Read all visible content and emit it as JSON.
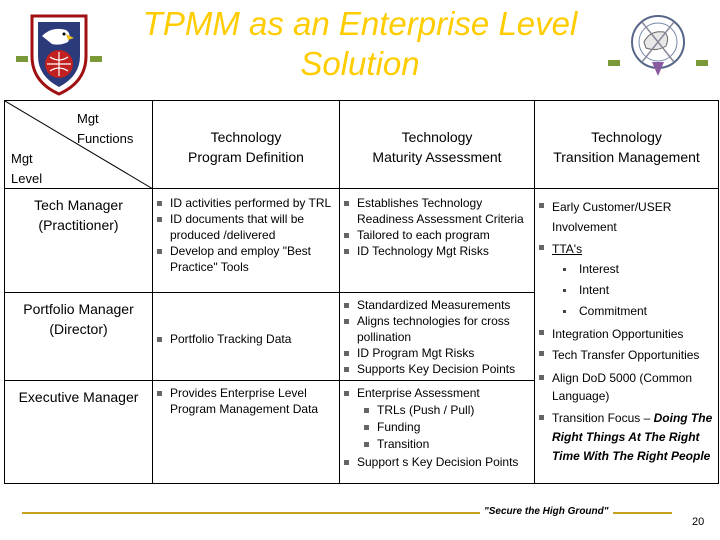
{
  "title_line1": "TPMM as an Enterprise Level",
  "title_line2": "Solution",
  "colors": {
    "title": "#ffcc00",
    "accent_green": "#7a9a3a",
    "footer_line": "#c8a020"
  },
  "table": {
    "corner": {
      "top": "Mgt",
      "top2": "Functions",
      "bottom": "Mgt",
      "bottom2": "Level"
    },
    "headers": [
      {
        "line1": "Technology",
        "line2": "Program Definition"
      },
      {
        "line1": "Technology",
        "line2": "Maturity Assessment"
      },
      {
        "line1": "Technology",
        "line2": "Transition  Management"
      }
    ],
    "rows": [
      {
        "label_line1": "Tech Manager",
        "label_line2": "(Practitioner)",
        "definition": [
          "ID activities performed by TRL",
          "ID documents that will be produced /delivered",
          "Develop and employ \"Best Practice\" Tools"
        ],
        "maturity": [
          "Establishes Technology Readiness Assessment Criteria",
          "Tailored to each program",
          "ID Technology Mgt Risks"
        ]
      },
      {
        "label_line1": "Portfolio Manager",
        "label_line2": "(Director)",
        "definition": [
          "Portfolio Tracking Data"
        ],
        "maturity": [
          "Standardized Measurements",
          "Aligns technologies for cross pollination",
          "ID Program Mgt Risks",
          "Supports Key Decision Points"
        ]
      },
      {
        "label_line1": "Executive Manager",
        "definition": [
          "Provides Enterprise Level Program Management Data"
        ],
        "maturity_top": "Enterprise  Assessment",
        "maturity_sub": [
          "TRLs (Push / Pull)",
          "Funding",
          "Transition"
        ],
        "maturity_bottom": "Support s Key Decision Points"
      }
    ],
    "transition": {
      "item1": "Early Customer/USER Involvement",
      "item2": "TTA's",
      "item2_sub": [
        "Interest",
        "Intent",
        "Commitment"
      ],
      "item3": "Integration Opportunities",
      "item4": "Tech Transfer Opportunities",
      "item5": "Align DoD 5000 (Common Language)",
      "item6_lead": "Transition Focus – ",
      "item6_emph": "Doing The Right Things At The Right Time With The Right People"
    }
  },
  "footer": {
    "motto": "\"Secure the High Ground\"",
    "page": "20"
  }
}
